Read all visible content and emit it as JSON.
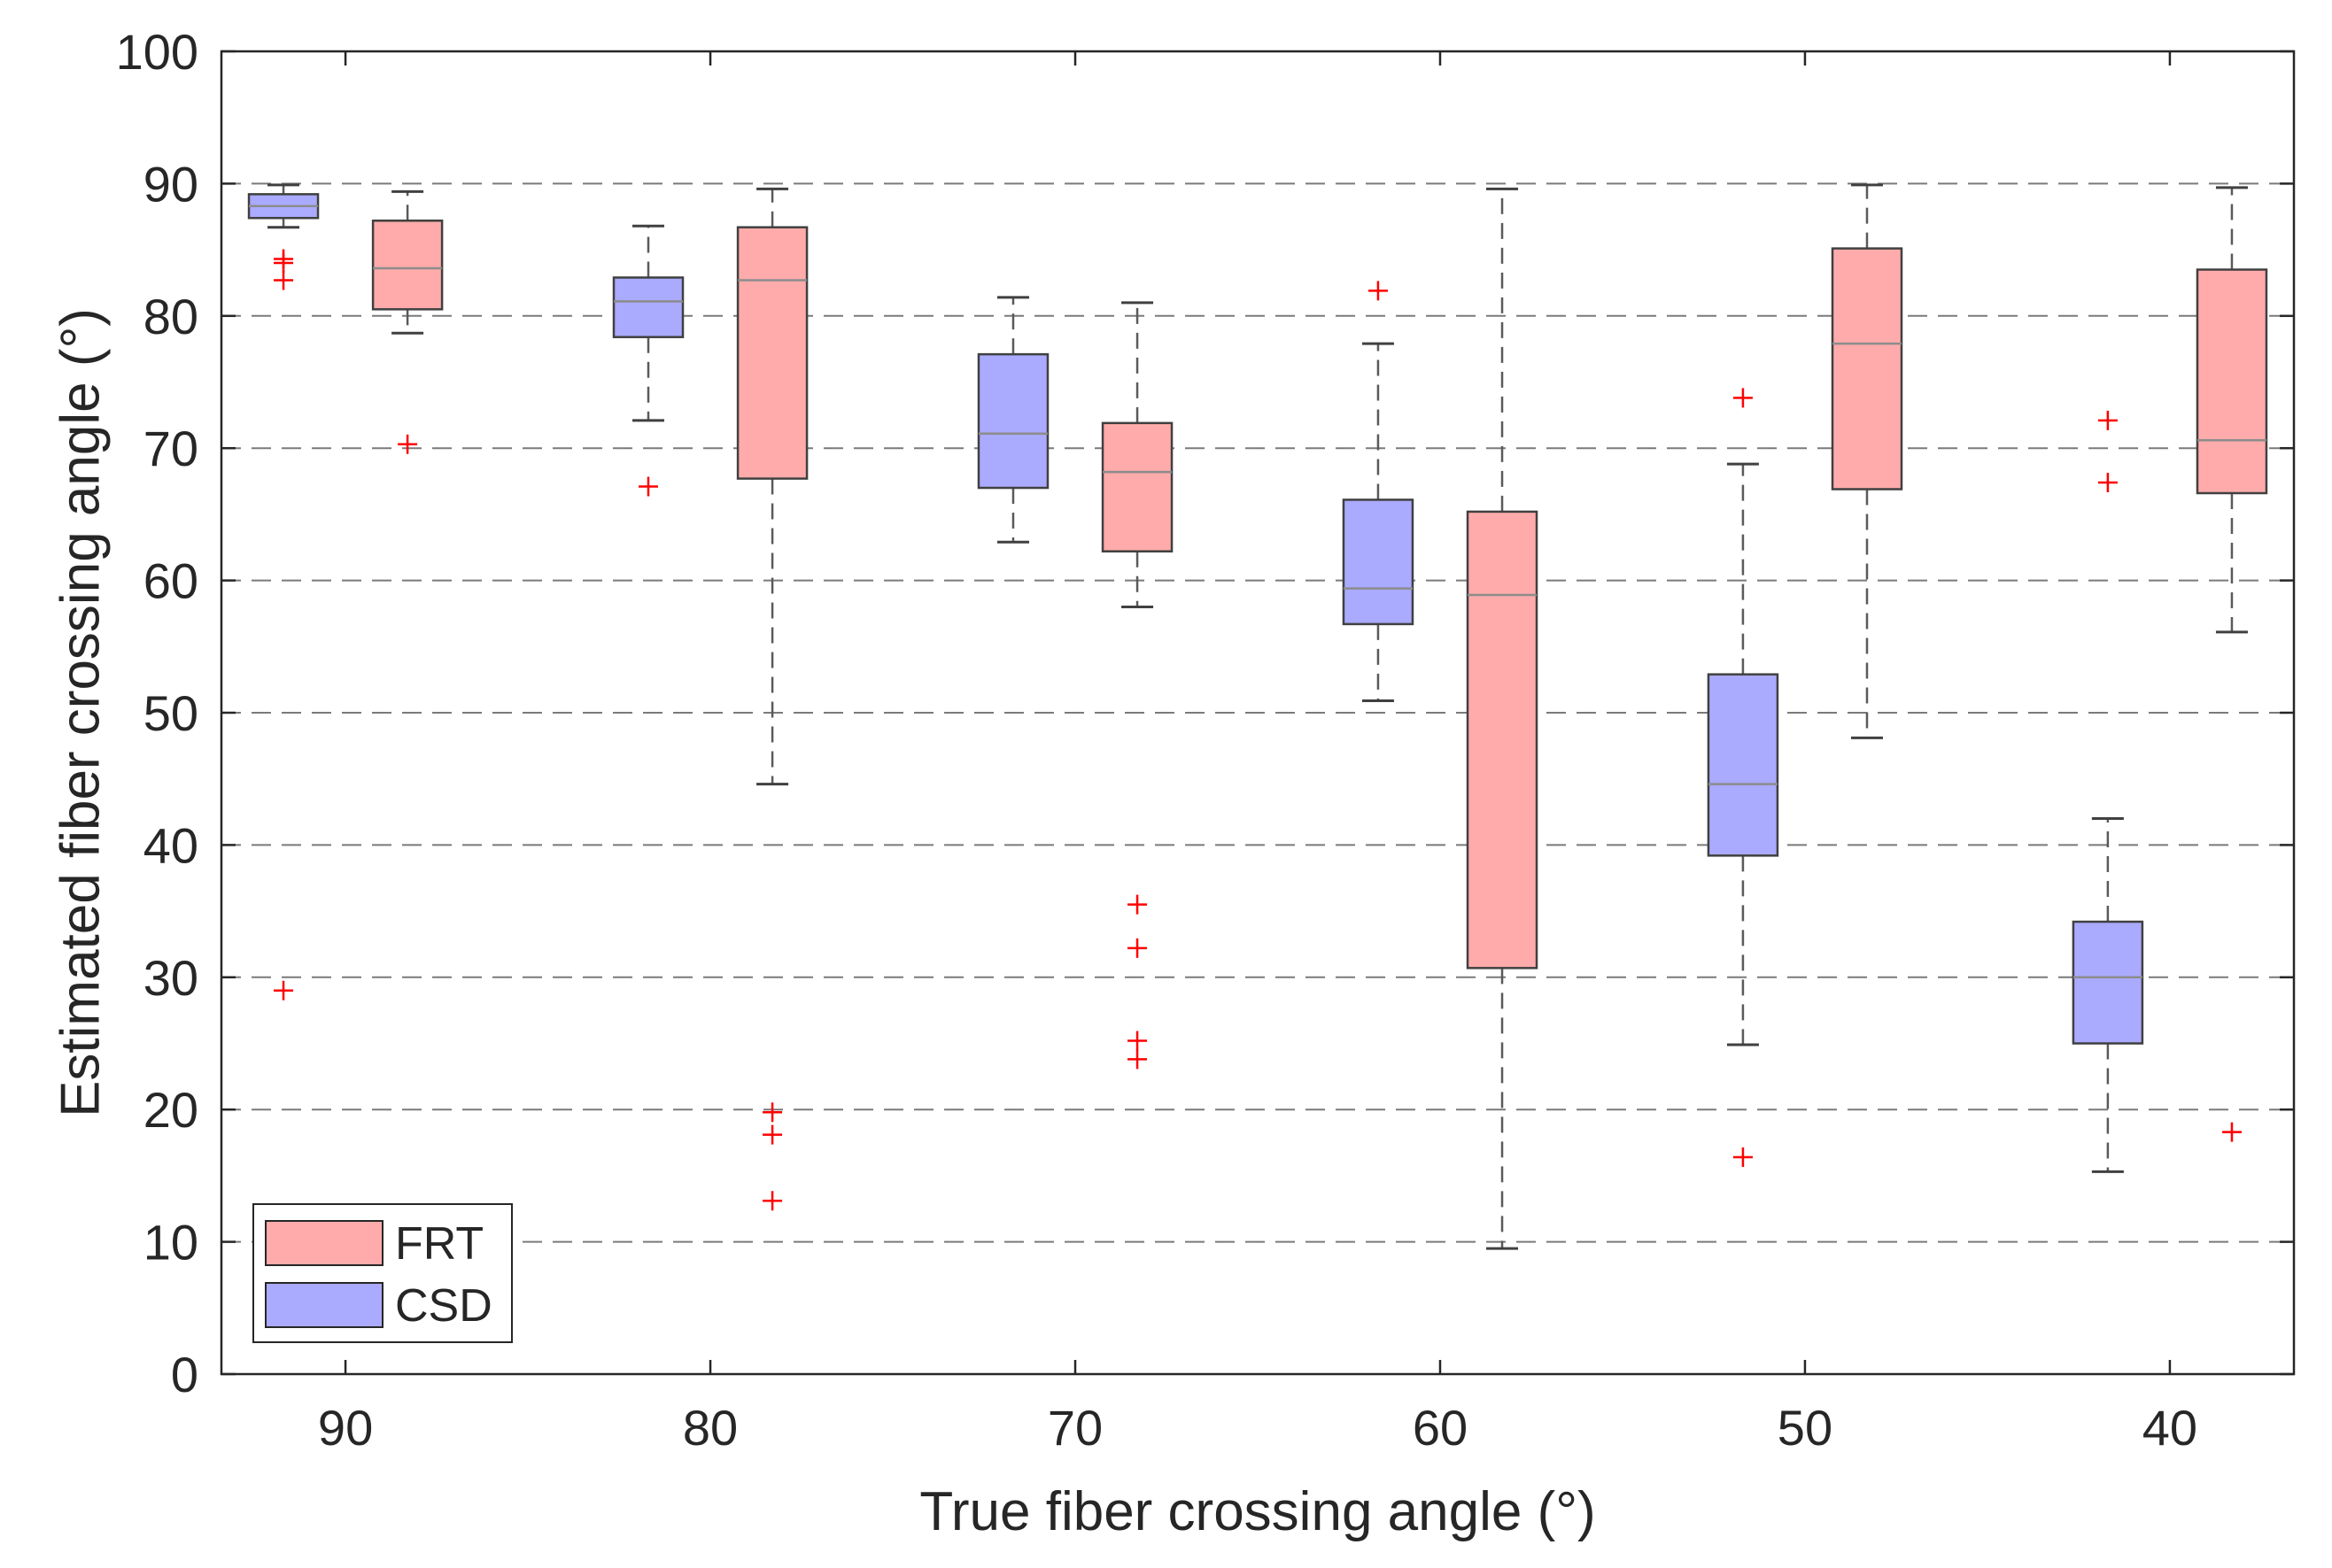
{
  "chart_data": {
    "type": "boxplot",
    "xlabel": "True fiber crossing angle (°)",
    "ylabel": "Estimated fiber crossing angle (°)",
    "ylim": [
      0,
      100
    ],
    "yticks": [
      0,
      10,
      20,
      30,
      40,
      50,
      60,
      70,
      80,
      90,
      100
    ],
    "xlim": [
      93.4,
      36.6
    ],
    "xticks": [
      90,
      80,
      70,
      60,
      50,
      40
    ],
    "grid": "horizontal dashed",
    "legend": {
      "placement": "bottom-left",
      "entries": [
        "FRT",
        "CSD"
      ]
    },
    "colors": {
      "FRT_fill": "#ffabab",
      "CSD_fill": "#aaaaff",
      "box_edge": "#404040",
      "whisker": "#5a5a5a",
      "median": "#8c8c8c",
      "outlier": "#ff0000",
      "grid": "#7a7a7a"
    },
    "series": [
      {
        "name": "CSD",
        "boxes": [
          {
            "true_angle": 90,
            "x": 91.7,
            "whisker_low": 86.7,
            "q1": 87.4,
            "median": 88.3,
            "q3": 89.2,
            "whisker_high": 89.9,
            "outliers": [
              84.3,
              84.0,
              82.7,
              29.0
            ]
          },
          {
            "true_angle": 80,
            "x": 81.7,
            "whisker_low": 72.1,
            "q1": 78.4,
            "median": 81.1,
            "q3": 82.9,
            "whisker_high": 86.8,
            "outliers": [
              67.1
            ]
          },
          {
            "true_angle": 70,
            "x": 71.7,
            "whisker_low": 62.9,
            "q1": 67.0,
            "median": 71.1,
            "q3": 77.1,
            "whisker_high": 81.4,
            "outliers": []
          },
          {
            "true_angle": 60,
            "x": 61.7,
            "whisker_low": 50.9,
            "q1": 56.7,
            "median": 59.4,
            "q3": 66.1,
            "whisker_high": 77.9,
            "outliers": [
              81.9
            ]
          },
          {
            "true_angle": 50,
            "x": 51.7,
            "whisker_low": 24.9,
            "q1": 39.2,
            "median": 44.6,
            "q3": 52.9,
            "whisker_high": 68.8,
            "outliers": [
              73.8,
              16.4
            ]
          },
          {
            "true_angle": 40,
            "x": 41.7,
            "whisker_low": 15.3,
            "q1": 25.0,
            "median": 30.0,
            "q3": 34.2,
            "whisker_high": 42.0,
            "outliers": [
              72.1,
              67.4
            ]
          }
        ]
      },
      {
        "name": "FRT",
        "boxes": [
          {
            "true_angle": 90,
            "x": 88.3,
            "whisker_low": 78.7,
            "q1": 80.5,
            "median": 83.6,
            "q3": 87.2,
            "whisker_high": 89.4,
            "outliers": [
              70.3
            ]
          },
          {
            "true_angle": 80,
            "x": 78.3,
            "whisker_low": 44.6,
            "q1": 67.7,
            "median": 82.7,
            "q3": 86.7,
            "whisker_high": 89.6,
            "outliers": [
              19.8,
              18.1,
              13.1
            ]
          },
          {
            "true_angle": 70,
            "x": 68.3,
            "whisker_low": 58.0,
            "q1": 62.2,
            "median": 68.2,
            "q3": 71.9,
            "whisker_high": 81.0,
            "outliers": [
              35.5,
              32.2,
              25.2,
              23.8
            ]
          },
          {
            "true_angle": 60,
            "x": 58.3,
            "whisker_low": 9.5,
            "q1": 30.7,
            "median": 58.9,
            "q3": 65.2,
            "whisker_high": 89.6,
            "outliers": []
          },
          {
            "true_angle": 50,
            "x": 48.3,
            "whisker_low": 48.1,
            "q1": 66.9,
            "median": 77.9,
            "q3": 85.1,
            "whisker_high": 89.9,
            "outliers": []
          },
          {
            "true_angle": 40,
            "x": 38.3,
            "whisker_low": 56.1,
            "q1": 66.6,
            "median": 70.6,
            "q3": 83.5,
            "whisker_high": 89.7,
            "outliers": [
              18.3
            ]
          }
        ]
      }
    ]
  }
}
